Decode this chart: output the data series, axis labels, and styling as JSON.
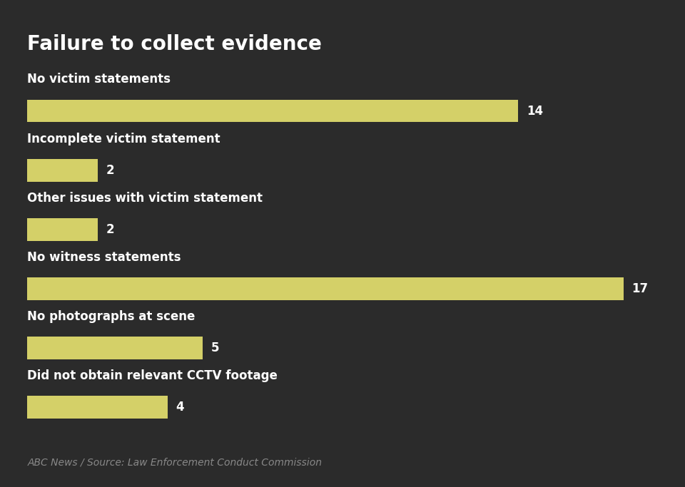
{
  "title": "Failure to collect evidence",
  "categories": [
    "No victim statements",
    "Incomplete victim statement",
    "Other issues with victim statement",
    "No witness statements",
    "No photographs at scene",
    "Did not obtain relevant CCTV footage"
  ],
  "values": [
    14,
    2,
    2,
    17,
    5,
    4
  ],
  "max_value": 17,
  "bar_color": "#d4d068",
  "background_color": "#2b2b2b",
  "text_color": "#ffffff",
  "title_fontsize": 20,
  "category_fontsize": 12,
  "value_fontsize": 12,
  "footnote": "ABC News / Source: Law Enforcement Conduct Commission",
  "footnote_color": "#888888",
  "footnote_fontsize": 10
}
